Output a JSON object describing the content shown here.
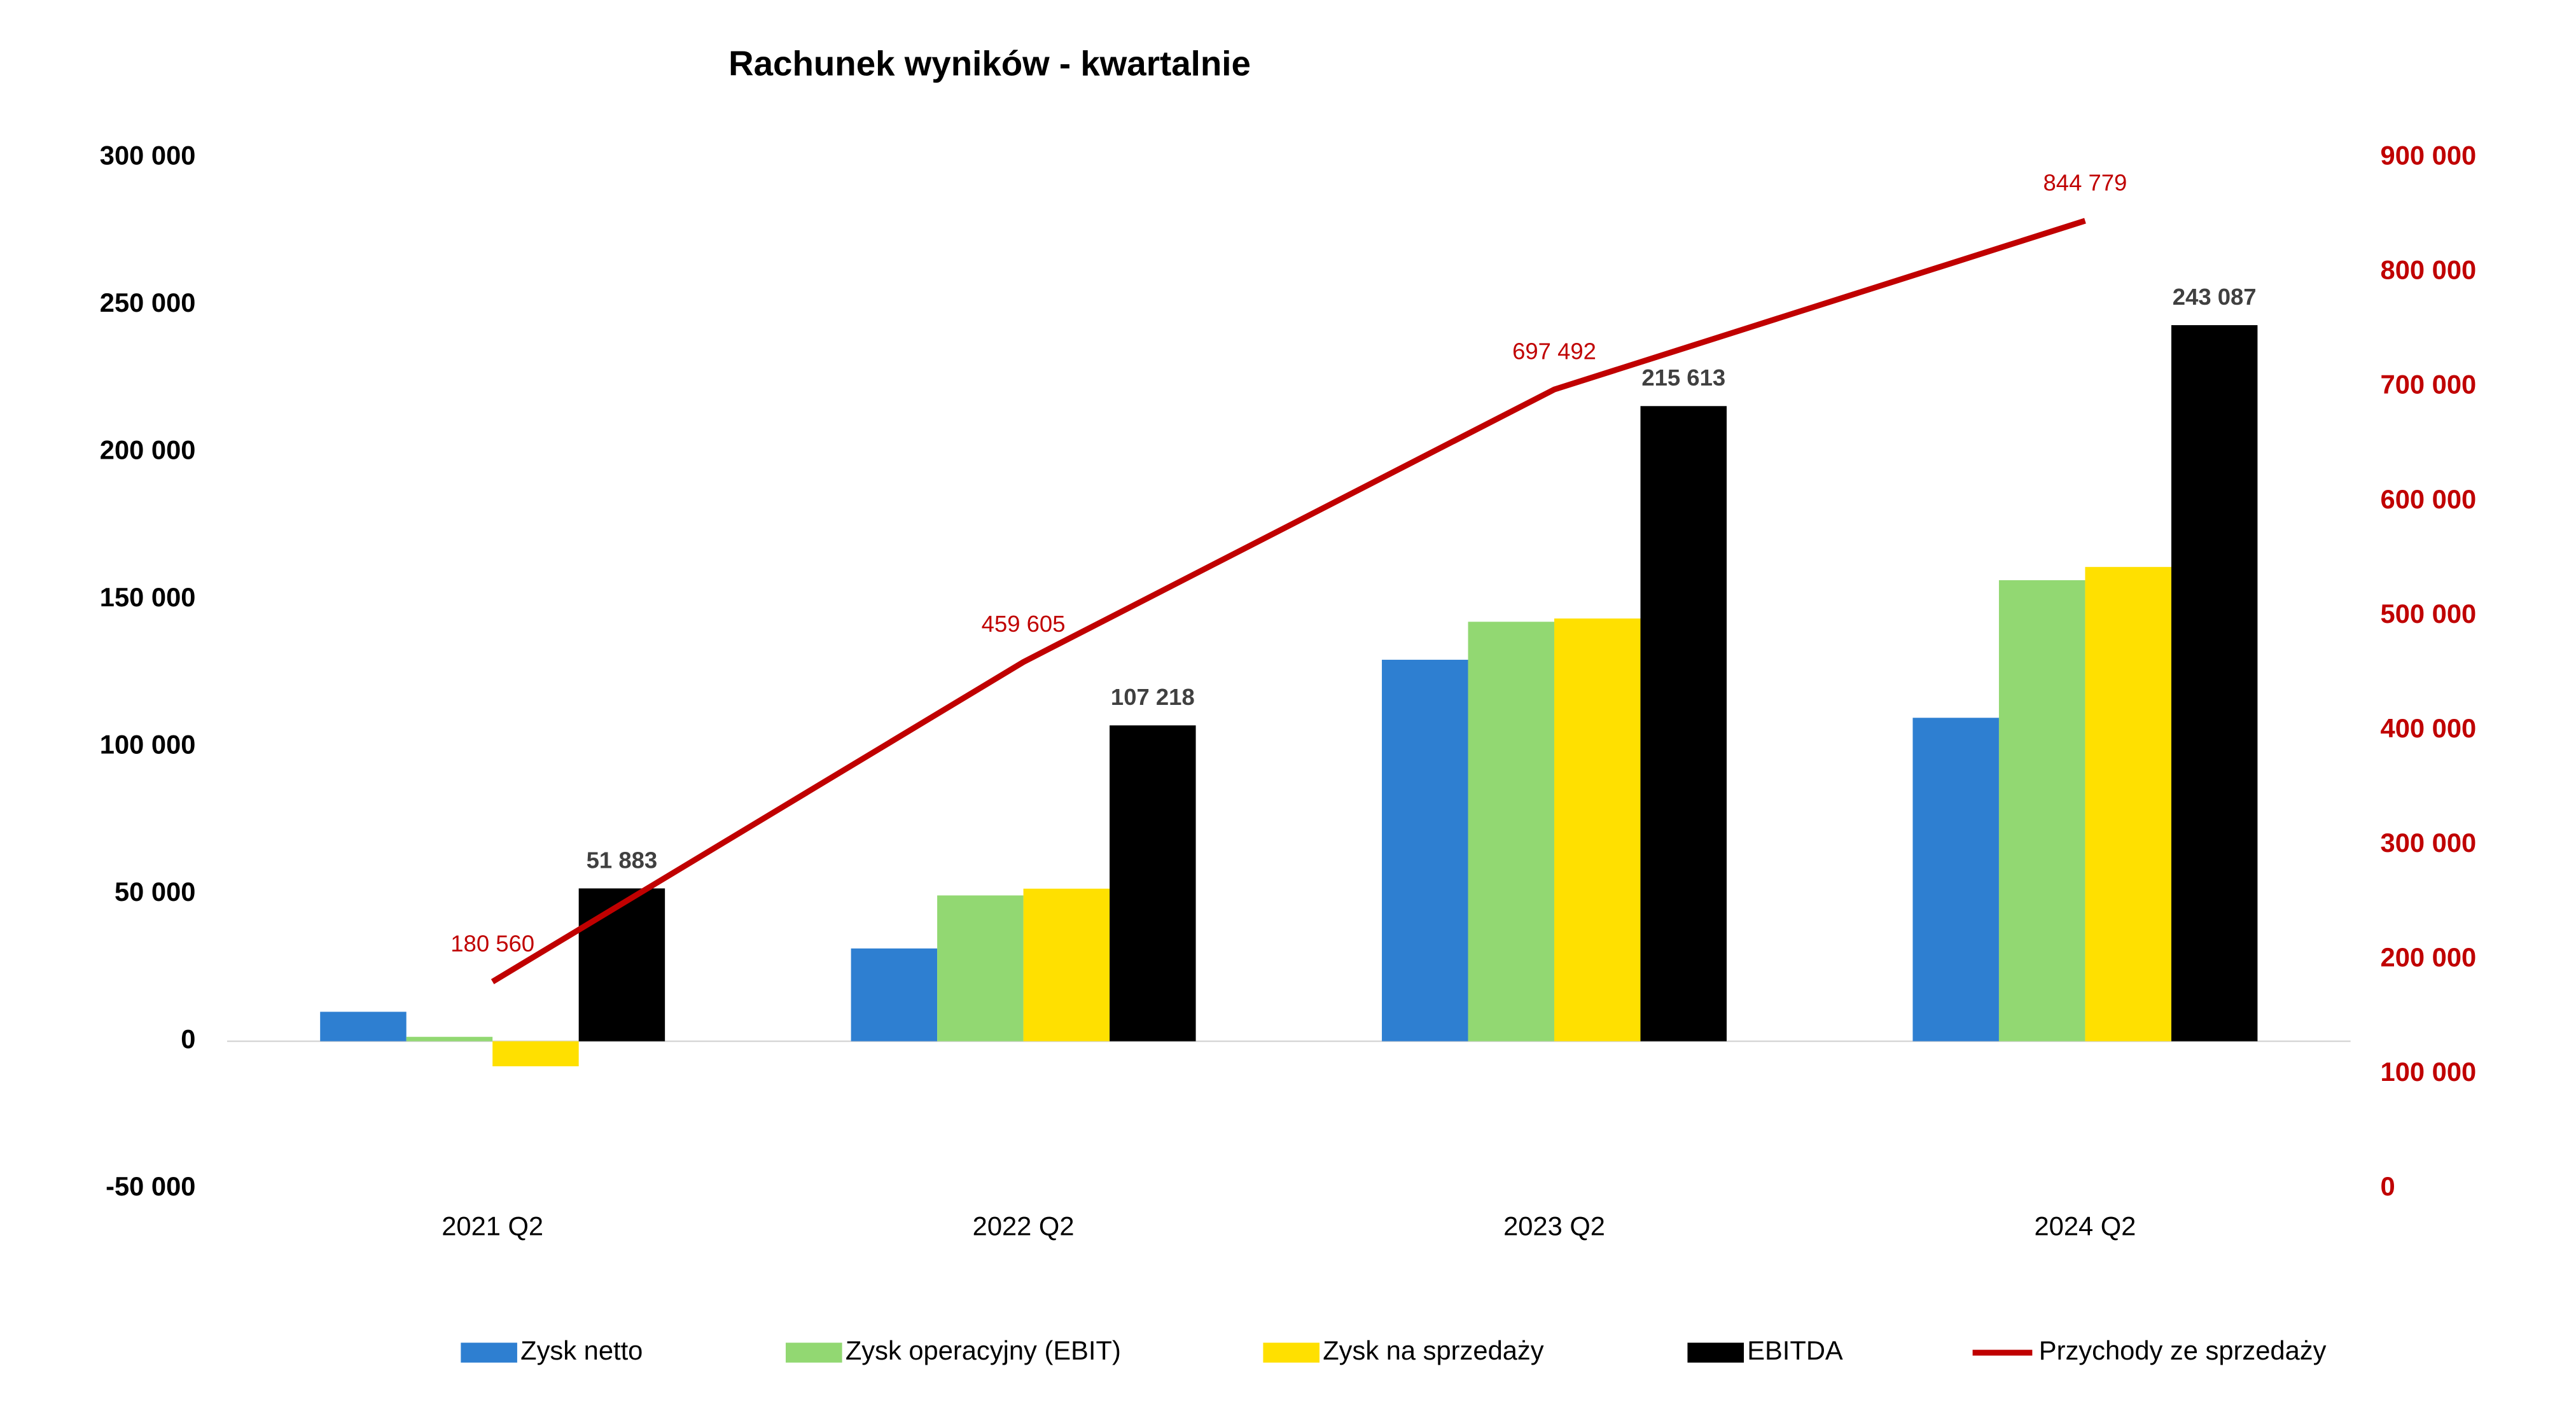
{
  "chart_data": {
    "type": "bar",
    "title": "Rachunek wyników - kwartalnie",
    "categories": [
      "2021 Q2",
      "2022 Q2",
      "2023 Q2",
      "2024 Q2"
    ],
    "series": [
      {
        "name": "Zysk netto",
        "color": "#2e7fd1",
        "values": [
          10000,
          31500,
          129500,
          109800
        ]
      },
      {
        "name": "Zysk operacyjny (EBIT)",
        "color": "#92d872",
        "values": [
          1500,
          49500,
          142400,
          156500
        ]
      },
      {
        "name": "Zysk na sprzedaży",
        "color": "#ffe000",
        "values": [
          -8500,
          51800,
          143500,
          161000
        ]
      },
      {
        "name": "EBITDA",
        "color": "#000000",
        "values": [
          51883,
          107218,
          215613,
          243087
        ],
        "value_labels": [
          "51 883",
          "107 218",
          "215 613",
          "243 087"
        ]
      },
      {
        "name": "Przychody ze sprzedaży",
        "color": "#c00000",
        "type": "line",
        "axis": "y2",
        "values": [
          180560,
          459605,
          697492,
          844779
        ],
        "value_labels": [
          "180 560",
          "459 605",
          "697 492",
          "844 779"
        ]
      }
    ],
    "ylim": [
      -50000,
      300000
    ],
    "yticks": [
      {
        "value": -50000,
        "label": "-50 000"
      },
      0,
      {
        "value": 50000,
        "label": "50 000"
      },
      {
        "value": 100000,
        "label": "100 000"
      },
      {
        "value": 150000,
        "label": "150 000"
      },
      {
        "value": 200000,
        "label": "200 000"
      },
      {
        "value": 250000,
        "label": "250 000"
      },
      {
        "value": 300000,
        "label": "300 000"
      }
    ],
    "y2lim": [
      0,
      900000
    ],
    "y2ticks": [
      0,
      {
        "value": 100000,
        "label": "100 000"
      },
      {
        "value": 200000,
        "label": "200 000"
      },
      {
        "value": 300000,
        "label": "300 000"
      },
      {
        "value": 400000,
        "label": "400 000"
      },
      {
        "value": 500000,
        "label": "500 000"
      },
      {
        "value": 600000,
        "label": "600 000"
      },
      {
        "value": 700000,
        "label": "700 000"
      },
      {
        "value": 800000,
        "label": "800 000"
      },
      {
        "value": 900000,
        "label": "900 000"
      }
    ],
    "y2_color": "#c00000",
    "grid": false,
    "legend": "bottom"
  }
}
